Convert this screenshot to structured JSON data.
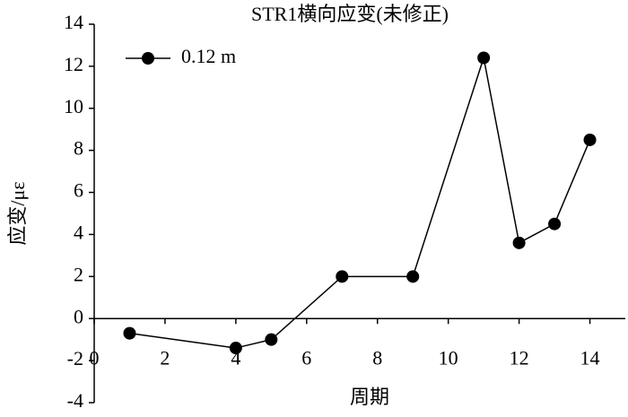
{
  "chart_data": {
    "type": "line",
    "title": "STR1横向应变(未修正)",
    "x_label": "周期",
    "y_label": "应变/με",
    "series": [
      {
        "name": "0.12 m",
        "color": "#000000",
        "x": [
          1,
          4,
          5,
          7,
          9,
          11,
          12,
          13,
          14
        ],
        "values": [
          -0.7,
          -1.4,
          -1.0,
          2.0,
          2.0,
          12.4,
          3.6,
          4.5,
          8.5
        ]
      }
    ],
    "xlim": [
      0,
      15
    ],
    "xticks": [
      0,
      2,
      4,
      6,
      8,
      10,
      12,
      14
    ],
    "ylim": [
      -4,
      14
    ],
    "yticks": [
      -4,
      -2,
      0,
      2,
      4,
      6,
      8,
      10,
      12,
      14
    ],
    "legend": "top-left",
    "grid": false
  }
}
